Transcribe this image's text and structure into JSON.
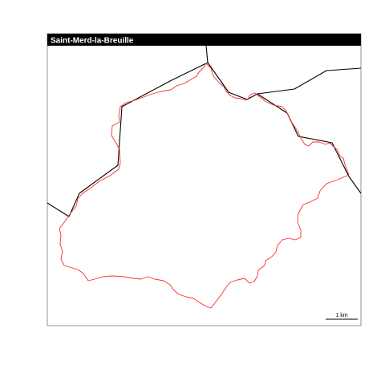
{
  "map": {
    "title": "Saint-Merd-la-Breuille",
    "scale_bar": {
      "label": "1 km"
    },
    "colors": {
      "boundary": "#ff2a2a",
      "neighbor_lines": "#000000",
      "title_bar": "#000000",
      "title_text": "#ffffff",
      "panel_border": "#777777",
      "background": "#ffffff"
    }
  }
}
